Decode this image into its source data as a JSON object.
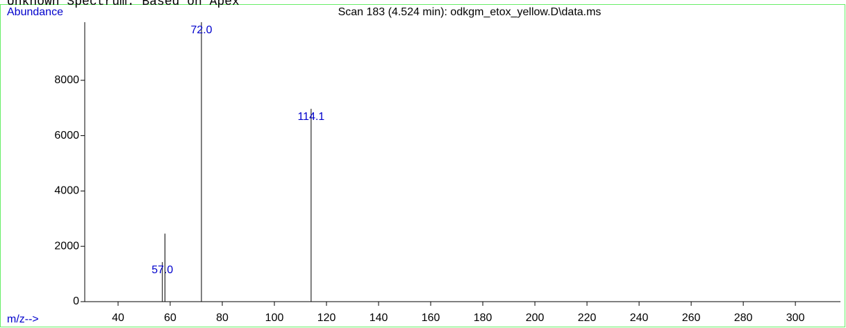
{
  "chart_data": {
    "type": "stem",
    "header": "Unknown Spectrum: Based on Apex",
    "title": "Scan 183 (4.524 min): odkgm_etox_yellow.D\\data.ms",
    "y_label": "Abundance",
    "x_label": "m/z-->",
    "x": [
      57.0,
      58.0,
      72.0,
      114.1
    ],
    "values": [
      1430,
      2460,
      10100,
      6970
    ],
    "x_labels": [
      "57.0",
      null,
      "72.0",
      "114.1"
    ],
    "color": "#000000",
    "label_color": "#0000cc",
    "xlim": [
      27.2,
      317.3
    ],
    "ylim": [
      0,
      10100
    ],
    "xticks": [
      40,
      60,
      80,
      100,
      120,
      140,
      160,
      180,
      200,
      220,
      240,
      260,
      280,
      300
    ],
    "yticks": [
      0,
      2000,
      4000,
      6000,
      8000
    ]
  }
}
